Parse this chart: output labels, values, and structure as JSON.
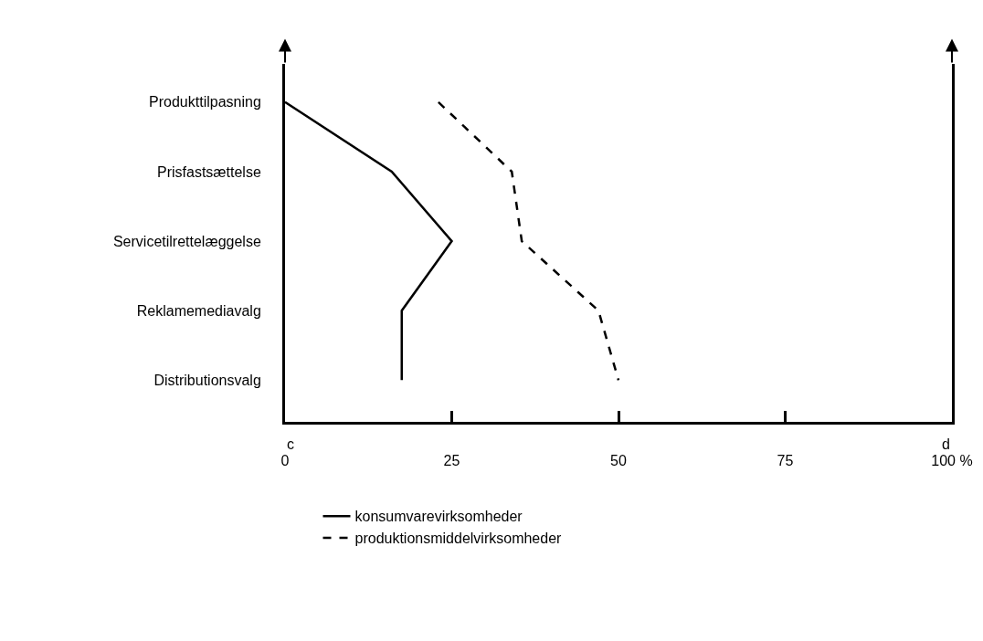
{
  "chart_data": {
    "type": "line",
    "orientation": "horizontal",
    "categories": [
      "Produkttilpasning",
      "Prisfastsættelse",
      "Servicetilrettelæggelse",
      "Reklamemediavalg",
      "Distributionsvalg"
    ],
    "series": [
      {
        "name": "konsumvarevirksomheder",
        "color": "#000000",
        "line_style": "solid",
        "values": [
          0,
          16,
          25,
          17.5,
          17.5
        ]
      },
      {
        "name": "produktionsmiddelvirksomheder",
        "color": "#000000",
        "line_style": "dashed",
        "values": [
          23,
          34,
          35.5,
          47,
          50
        ]
      }
    ],
    "xlim": [
      0,
      100
    ],
    "xticks": [
      0,
      25,
      50,
      75,
      {
        "value": 100,
        "label": "100 %"
      }
    ],
    "annotations": [
      "c",
      "d"
    ],
    "grid": false,
    "marker": "none",
    "legend": "bottom"
  }
}
